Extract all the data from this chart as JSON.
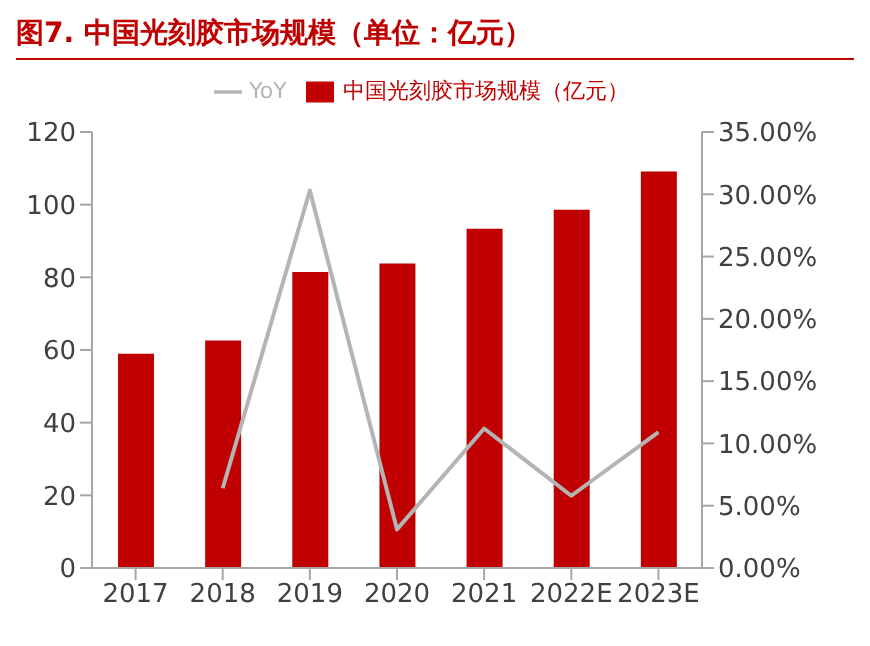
{
  "chart_data": {
    "type": "bar",
    "title": "图7. 中国光刻胶市场规模（单位：亿元）",
    "categories": [
      "2017",
      "2018",
      "2019",
      "2020",
      "2021",
      "2022E",
      "2023E"
    ],
    "series": [
      {
        "name": "中国光刻胶市场规模（亿元）",
        "color": "#c00000",
        "values": [
          59,
          62.6,
          81.5,
          83.8,
          93.4,
          98.6,
          109.1
        ]
      },
      {
        "name": "YoY",
        "type": "line",
        "axis": "y2",
        "color": "#b4b4b4",
        "marker": "none",
        "values": [
          null,
          6.4,
          30.3,
          3.1,
          11.2,
          5.8,
          10.9
        ]
      }
    ],
    "ylim": [
      0,
      120
    ],
    "yticks": [
      0,
      20,
      40,
      60,
      80,
      100,
      120
    ],
    "y2lim": [
      0,
      35
    ],
    "y2ticks": [
      {
        "value": 0,
        "label": "0.00%"
      },
      {
        "value": 5,
        "label": "5.00%"
      },
      {
        "value": 10,
        "label": "10.00%"
      },
      {
        "value": 15,
        "label": "15.00%"
      },
      {
        "value": 20,
        "label": "20.00%"
      },
      {
        "value": 25,
        "label": "25.00%"
      },
      {
        "value": 30,
        "label": "30.00%"
      },
      {
        "value": 35,
        "label": "35.00%"
      }
    ],
    "grid": false,
    "legend": "top"
  }
}
